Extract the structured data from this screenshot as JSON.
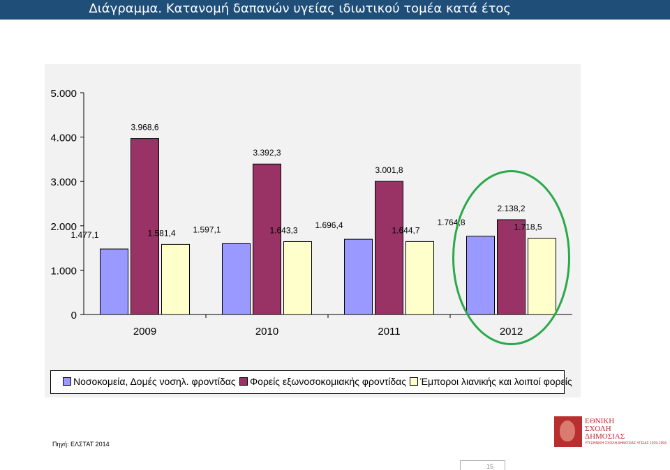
{
  "slide": {
    "title": "Διάγραμμα. Κατανομή δαπανών υγείας ιδιωτικού τομέα κατά έτος",
    "source": "Πηγή: ΕΛΣΤΑΤ 2014",
    "page_number": "15",
    "colors": {
      "title_bar": "#1f4e79",
      "highlight_circle": "#2aa84a",
      "chart_background": "#f2f2f2"
    }
  },
  "logo": {
    "lines": [
      "ΕΘΝΙΚΗ",
      "ΣΧΟΛΗ",
      "ΔΗΜΟΣΙΑΣ",
      "ΥΓΕΙΑΣ"
    ],
    "tagline": "ΥΠ ΕΘΝΙΚΗ ΣΧΟΛΗ ΔΗΜΟΣΙΑΣ ΥΓΕΙΑΣ 1929-1994"
  },
  "chart_data": {
    "type": "bar",
    "categories": [
      "2009",
      "2010",
      "2011",
      "2012"
    ],
    "series": [
      {
        "name": "Νοσοκομεία, Δομές νοσηλ. φροντίδας",
        "color": "#9999ff",
        "values": [
          1477.1,
          1597.1,
          1696.4,
          1764.8
        ],
        "labels": [
          "1.477,1",
          "1.597,1",
          "1.696,4",
          "1.764,8"
        ]
      },
      {
        "name": "Φορείς εξωνοσοκομιακής φροντίδας",
        "color": "#993366",
        "values": [
          3968.6,
          3392.3,
          3001.8,
          2138.2
        ],
        "labels": [
          "3.968,6",
          "3.392,3",
          "3.001,8",
          "2.138,2"
        ]
      },
      {
        "name": "Έμποροι λιανικής και λοιποί φορείς",
        "color": "#ffffcc",
        "values": [
          1581.4,
          1643.3,
          1644.7,
          1718.5
        ],
        "labels": [
          "1.581,4",
          "1.643,3",
          "1.644,7",
          "1.718,5"
        ]
      }
    ],
    "yticks": [
      0,
      1000,
      2000,
      3000,
      4000,
      5000
    ],
    "ytick_labels": [
      "0",
      "1.000",
      "2.000",
      "3.000",
      "4.000",
      "5.000"
    ],
    "ylim": [
      0,
      5000
    ],
    "grid": false,
    "legend": "bottom",
    "highlighted_category": "2012"
  }
}
